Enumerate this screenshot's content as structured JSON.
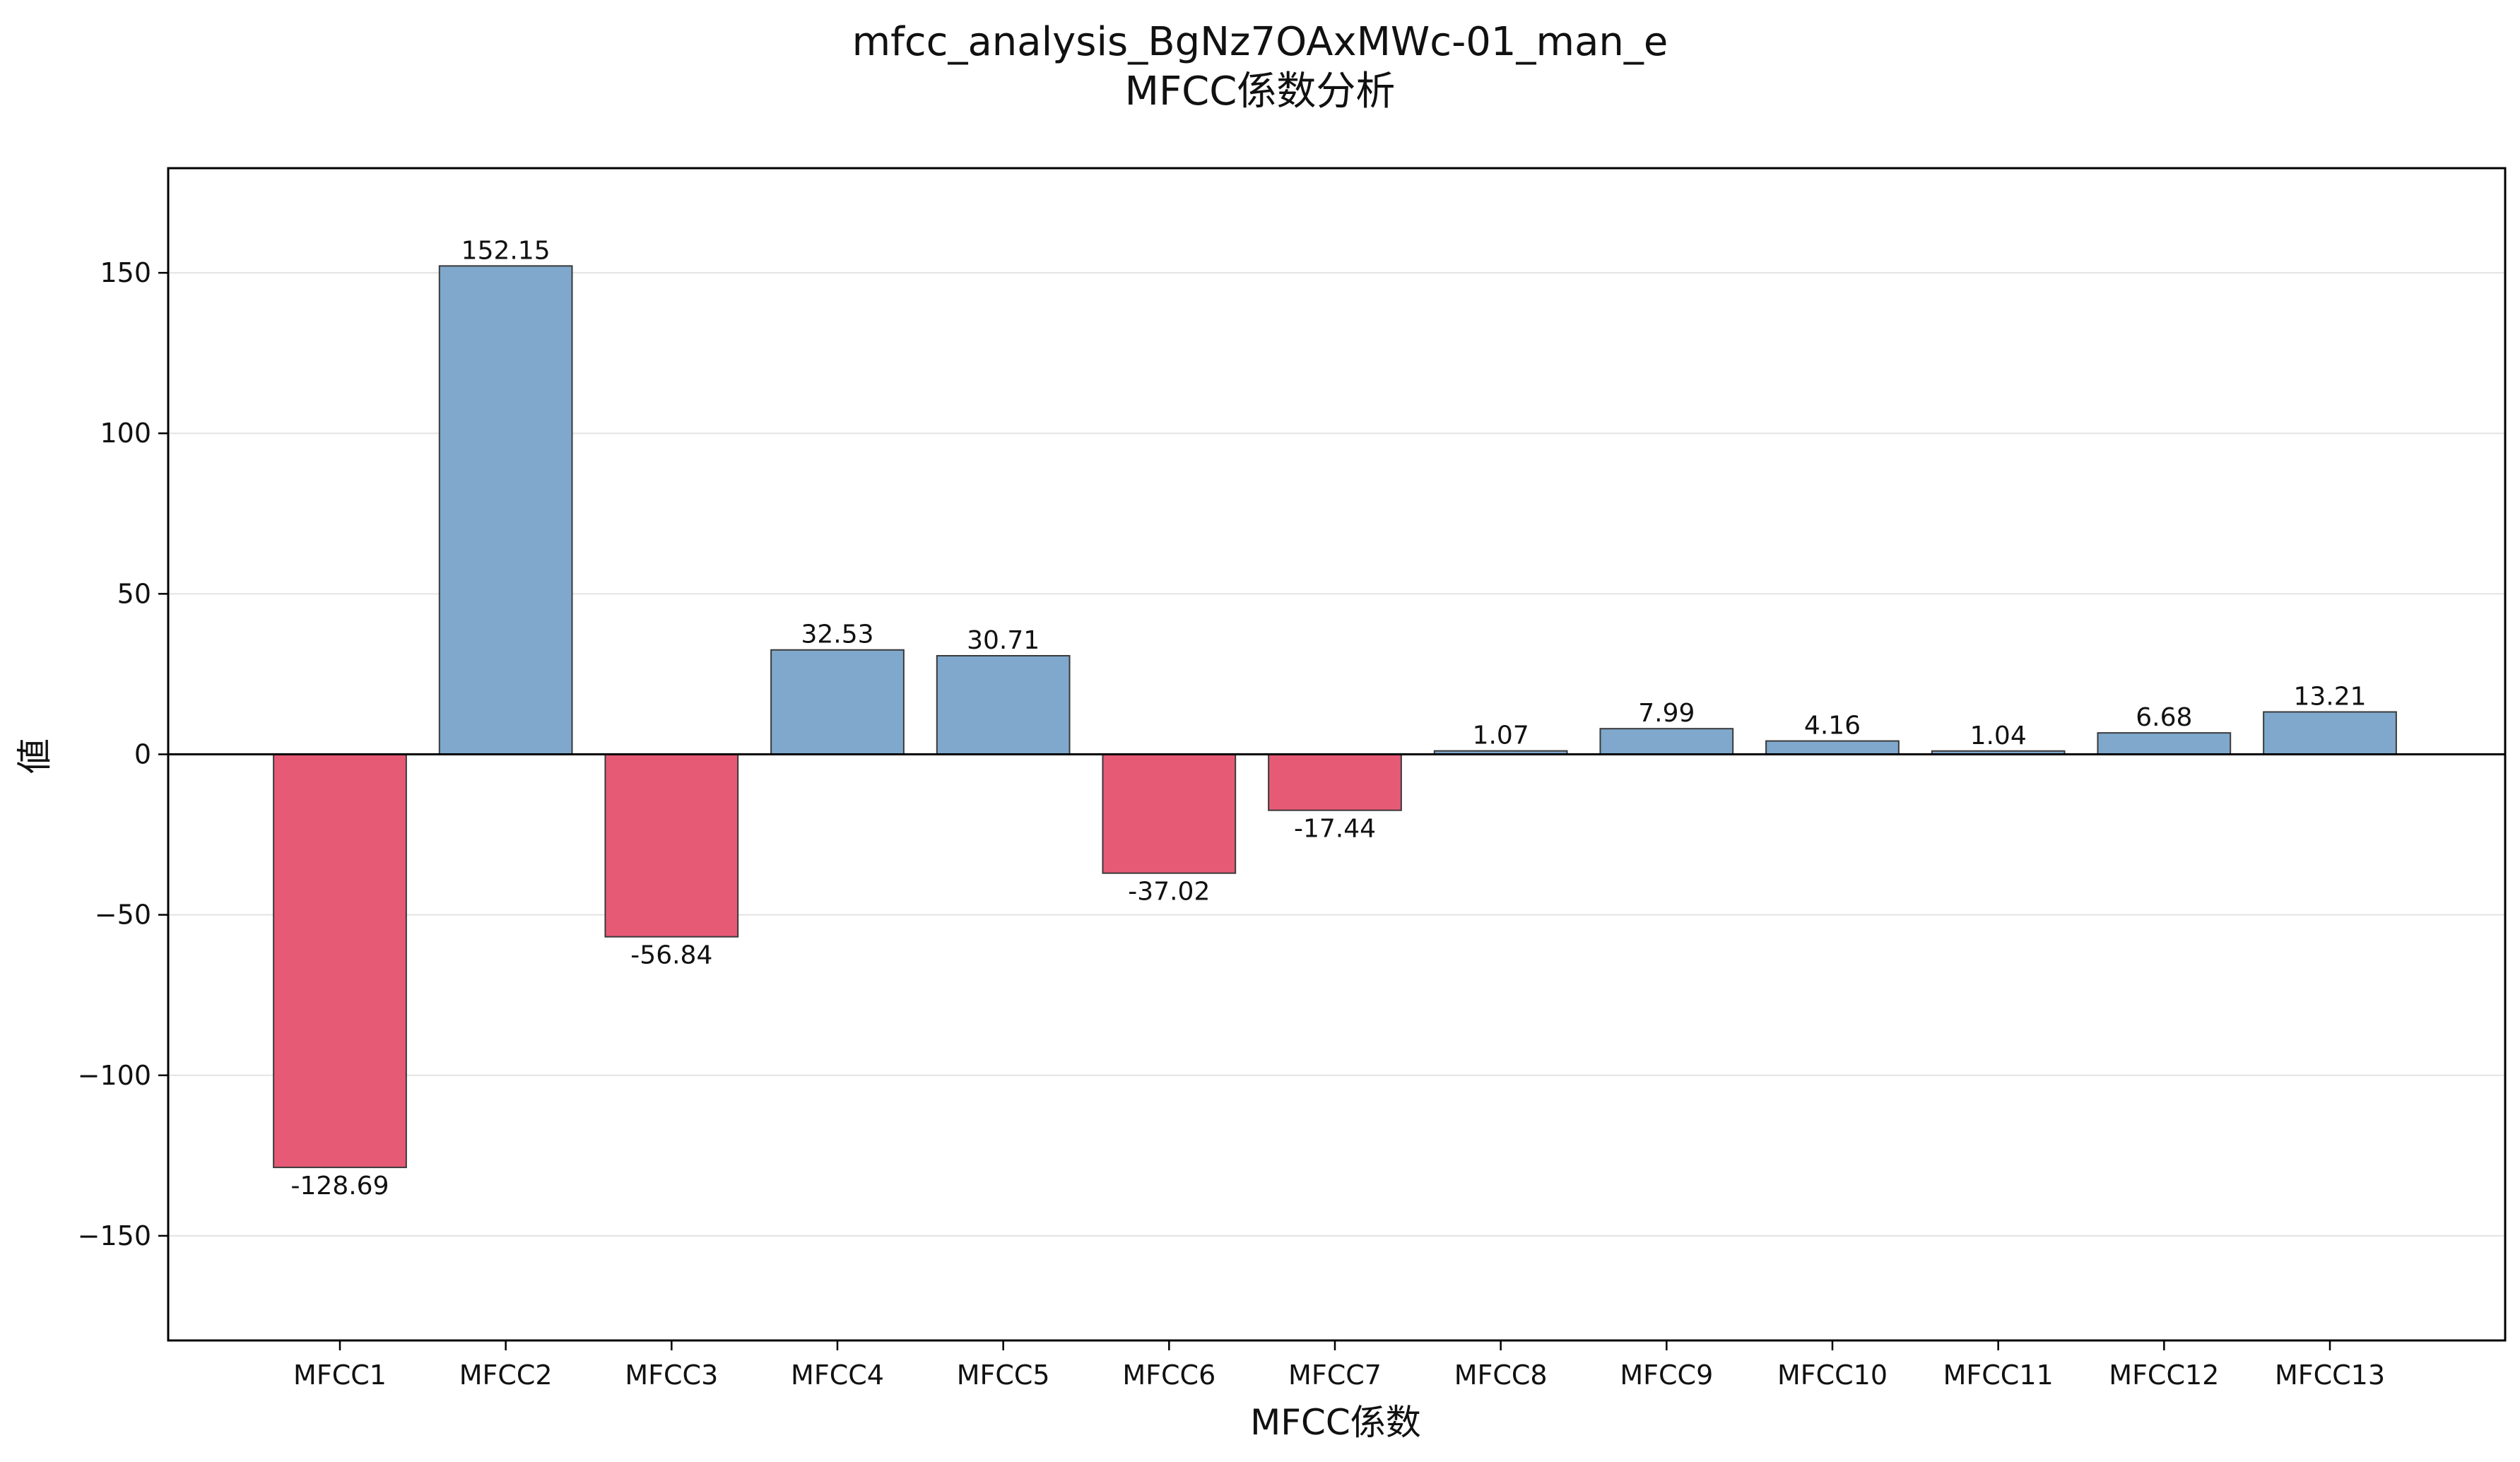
{
  "chart_data": {
    "type": "bar",
    "title": "mfcc_analysis_BgNz7OAxMWc-01_man_e",
    "subtitle": "MFCC係数分析",
    "xlabel": "MFCC係数",
    "ylabel": "値",
    "categories": [
      "MFCC1",
      "MFCC2",
      "MFCC3",
      "MFCC4",
      "MFCC5",
      "MFCC6",
      "MFCC7",
      "MFCC8",
      "MFCC9",
      "MFCC10",
      "MFCC11",
      "MFCC12",
      "MFCC13"
    ],
    "values": [
      -128.69,
      152.15,
      -56.84,
      32.53,
      30.71,
      -37.02,
      -17.44,
      1.07,
      7.99,
      4.16,
      1.04,
      6.68,
      13.21
    ],
    "data_labels": [
      "-128.69",
      "152.15",
      "-56.84",
      "32.53",
      "30.71",
      "-37.02",
      "-17.44",
      "1.07",
      "7.99",
      "4.16",
      "1.04",
      "6.68",
      "13.21"
    ],
    "yticks": [
      -150,
      -100,
      -50,
      0,
      50,
      100,
      150
    ],
    "ytick_labels": [
      "−150",
      "−100",
      "−50",
      "0",
      "50",
      "100",
      "150"
    ],
    "ylim": [
      -182.6,
      182.6
    ],
    "grid": "y-major",
    "legend": "none",
    "colors": {
      "positive": "#7fa8cc",
      "negative": "#e65a76",
      "edge": "#3a3a3a"
    }
  }
}
